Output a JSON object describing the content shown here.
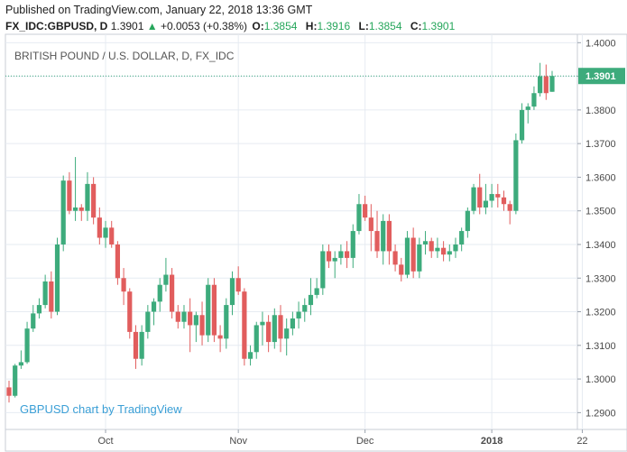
{
  "header": {
    "published": "Published on TradingView.com, January 22, 2018 13:36 GMT",
    "symbol": "FX_IDC:GBPUSD, D",
    "last": "1.3901",
    "change": "+0.0053 (+0.38%)",
    "open_label": "O:",
    "open": "1.3854",
    "high_label": "H:",
    "high": "1.3916",
    "low_label": "L:",
    "low": "1.3854",
    "close_label": "C:",
    "close": "1.3901"
  },
  "chart_data": {
    "type": "candlestick",
    "title": "BRITISH POUND / U.S. DOLLAR, D, FX_IDC",
    "watermark": "GBPUSD chart by TradingView",
    "last_price_label": "1.3901",
    "y_ticks": [
      1.29,
      1.3,
      1.31,
      1.32,
      1.33,
      1.34,
      1.35,
      1.36,
      1.37,
      1.38,
      1.39,
      1.4
    ],
    "ylim": [
      1.285,
      1.4025
    ],
    "x_ticks": [
      {
        "label": "Oct",
        "index": 16
      },
      {
        "label": "Nov",
        "index": 38
      },
      {
        "label": "Dec",
        "index": 59
      },
      {
        "label": "2018",
        "index": 80
      },
      {
        "label": "22",
        "index": 95
      }
    ],
    "grid": true,
    "up_color": "#3dab7c",
    "down_color": "#e15d5d",
    "last_line_color": "#3dab7c",
    "candles": [
      [
        1.2975,
        1.2995,
        1.293,
        1.295
      ],
      [
        1.295,
        1.3045,
        1.2945,
        1.304
      ],
      [
        1.304,
        1.3085,
        1.303,
        1.305
      ],
      [
        1.305,
        1.317,
        1.3045,
        1.315
      ],
      [
        1.315,
        1.322,
        1.314,
        1.3195
      ],
      [
        1.3195,
        1.324,
        1.318,
        1.322
      ],
      [
        1.322,
        1.331,
        1.321,
        1.329
      ],
      [
        1.329,
        1.332,
        1.318,
        1.32
      ],
      [
        1.32,
        1.342,
        1.319,
        1.34
      ],
      [
        1.34,
        1.3605,
        1.338,
        1.359
      ],
      [
        1.359,
        1.3615,
        1.349,
        1.35
      ],
      [
        1.35,
        1.366,
        1.347,
        1.351
      ],
      [
        1.351,
        1.352,
        1.347,
        1.35
      ],
      [
        1.35,
        1.3615,
        1.347,
        1.358
      ],
      [
        1.358,
        1.36,
        1.346,
        1.348
      ],
      [
        1.348,
        1.351,
        1.34,
        1.342
      ],
      [
        1.342,
        1.347,
        1.339,
        1.345
      ],
      [
        1.345,
        1.347,
        1.339,
        1.34
      ],
      [
        1.34,
        1.341,
        1.328,
        1.33
      ],
      [
        1.33,
        1.333,
        1.322,
        1.326
      ],
      [
        1.326,
        1.327,
        1.312,
        1.314
      ],
      [
        1.314,
        1.316,
        1.303,
        1.306
      ],
      [
        1.306,
        1.316,
        1.304,
        1.314
      ],
      [
        1.314,
        1.322,
        1.312,
        1.32
      ],
      [
        1.32,
        1.324,
        1.316,
        1.323
      ],
      [
        1.323,
        1.33,
        1.32,
        1.328
      ],
      [
        1.328,
        1.336,
        1.326,
        1.331
      ],
      [
        1.331,
        1.333,
        1.318,
        1.32
      ],
      [
        1.32,
        1.322,
        1.315,
        1.317
      ],
      [
        1.317,
        1.322,
        1.315,
        1.32
      ],
      [
        1.32,
        1.324,
        1.308,
        1.316
      ],
      [
        1.316,
        1.32,
        1.311,
        1.319
      ],
      [
        1.319,
        1.323,
        1.31,
        1.313
      ],
      [
        1.313,
        1.33,
        1.311,
        1.328
      ],
      [
        1.328,
        1.33,
        1.311,
        1.313
      ],
      [
        1.313,
        1.316,
        1.308,
        1.312
      ],
      [
        1.312,
        1.324,
        1.309,
        1.322
      ],
      [
        1.322,
        1.332,
        1.319,
        1.33
      ],
      [
        1.33,
        1.3335,
        1.325,
        1.326
      ],
      [
        1.326,
        1.327,
        1.304,
        1.306
      ],
      [
        1.306,
        1.31,
        1.304,
        1.308
      ],
      [
        1.308,
        1.317,
        1.306,
        1.316
      ],
      [
        1.316,
        1.32,
        1.31,
        1.317
      ],
      [
        1.317,
        1.319,
        1.308,
        1.311
      ],
      [
        1.311,
        1.321,
        1.309,
        1.319
      ],
      [
        1.319,
        1.322,
        1.308,
        1.312
      ],
      [
        1.312,
        1.318,
        1.307,
        1.315
      ],
      [
        1.315,
        1.32,
        1.313,
        1.318
      ],
      [
        1.318,
        1.323,
        1.315,
        1.32
      ],
      [
        1.32,
        1.324,
        1.317,
        1.322
      ],
      [
        1.322,
        1.33,
        1.319,
        1.325
      ],
      [
        1.325,
        1.33,
        1.324,
        1.327
      ],
      [
        1.327,
        1.34,
        1.325,
        1.338
      ],
      [
        1.338,
        1.34,
        1.333,
        1.335
      ],
      [
        1.335,
        1.338,
        1.33,
        1.336
      ],
      [
        1.336,
        1.34,
        1.334,
        1.338
      ],
      [
        1.338,
        1.341,
        1.333,
        1.336
      ],
      [
        1.336,
        1.346,
        1.333,
        1.344
      ],
      [
        1.344,
        1.355,
        1.343,
        1.352
      ],
      [
        1.352,
        1.3545,
        1.347,
        1.348
      ],
      [
        1.348,
        1.352,
        1.338,
        1.344
      ],
      [
        1.344,
        1.35,
        1.336,
        1.338
      ],
      [
        1.338,
        1.349,
        1.334,
        1.347
      ],
      [
        1.347,
        1.349,
        1.334,
        1.338
      ],
      [
        1.338,
        1.34,
        1.332,
        1.334
      ],
      [
        1.334,
        1.336,
        1.329,
        1.331
      ],
      [
        1.331,
        1.344,
        1.33,
        1.342
      ],
      [
        1.342,
        1.345,
        1.33,
        1.332
      ],
      [
        1.332,
        1.342,
        1.33,
        1.34
      ],
      [
        1.34,
        1.344,
        1.337,
        1.341
      ],
      [
        1.341,
        1.342,
        1.336,
        1.338
      ],
      [
        1.338,
        1.342,
        1.336,
        1.339
      ],
      [
        1.339,
        1.341,
        1.335,
        1.337
      ],
      [
        1.337,
        1.34,
        1.335,
        1.338
      ],
      [
        1.338,
        1.342,
        1.336,
        1.34
      ],
      [
        1.34,
        1.345,
        1.338,
        1.344
      ],
      [
        1.344,
        1.351,
        1.342,
        1.35
      ],
      [
        1.35,
        1.358,
        1.349,
        1.357
      ],
      [
        1.357,
        1.361,
        1.349,
        1.351
      ],
      [
        1.351,
        1.358,
        1.349,
        1.353
      ],
      [
        1.353,
        1.358,
        1.351,
        1.355
      ],
      [
        1.355,
        1.358,
        1.351,
        1.354
      ],
      [
        1.354,
        1.356,
        1.35,
        1.352
      ],
      [
        1.352,
        1.353,
        1.346,
        1.35
      ],
      [
        1.35,
        1.373,
        1.349,
        1.371
      ],
      [
        1.371,
        1.382,
        1.37,
        1.38
      ],
      [
        1.38,
        1.382,
        1.376,
        1.381
      ],
      [
        1.381,
        1.387,
        1.38,
        1.385
      ],
      [
        1.385,
        1.394,
        1.384,
        1.39
      ],
      [
        1.39,
        1.3935,
        1.383,
        1.385
      ],
      [
        1.3854,
        1.3916,
        1.3854,
        1.3901
      ]
    ]
  }
}
